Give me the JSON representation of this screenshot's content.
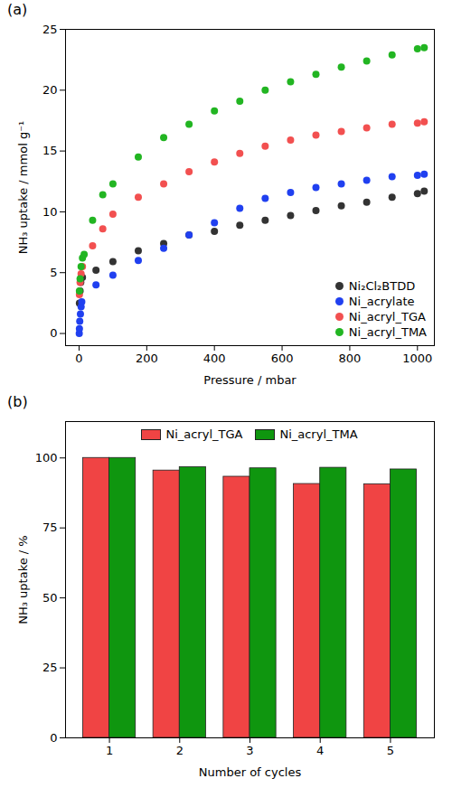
{
  "chart_data": [
    {
      "type": "scatter",
      "title": "(a)",
      "x_label": "Pressure / mbar",
      "y_label": "NH₃ uptake / mmol g⁻¹",
      "xlim": [
        -40,
        1050
      ],
      "xticks": [
        0,
        200,
        400,
        600,
        800,
        1000
      ],
      "ylim": [
        -1,
        25
      ],
      "yticks": [
        0,
        5,
        10,
        15,
        20,
        25
      ],
      "legend": "bottom right",
      "series": [
        {
          "name": "Ni₂Cl₂BTDD",
          "color": "#333333",
          "marker": "circle",
          "x": [
            1,
            3,
            5,
            10,
            50,
            100,
            175,
            250,
            325,
            400,
            475,
            550,
            625,
            700,
            775,
            850,
            925,
            1000,
            1020
          ],
          "values": [
            2.5,
            3.5,
            4.2,
            4.6,
            5.2,
            5.9,
            6.8,
            7.4,
            8.1,
            8.4,
            8.9,
            9.3,
            9.7,
            10.1,
            10.5,
            10.8,
            11.2,
            11.5,
            11.7
          ]
        },
        {
          "name": "Ni_acrylate",
          "color": "#2040f0",
          "marker": "circle",
          "x": [
            0.5,
            1,
            2,
            4,
            6,
            8,
            50,
            100,
            175,
            250,
            325,
            400,
            475,
            550,
            625,
            700,
            775,
            850,
            925,
            1000,
            1020
          ],
          "values": [
            0,
            0.4,
            1.0,
            1.6,
            2.2,
            2.6,
            4.0,
            4.8,
            6.0,
            7.0,
            8.1,
            9.1,
            10.3,
            11.1,
            11.6,
            12.0,
            12.3,
            12.6,
            12.9,
            13.0,
            13.1
          ]
        },
        {
          "name": "Ni_acryl_TGA",
          "color": "#f25050",
          "marker": "circle",
          "x": [
            1,
            3,
            6,
            10,
            40,
            70,
            100,
            175,
            250,
            325,
            400,
            475,
            550,
            625,
            700,
            775,
            850,
            925,
            1000,
            1020
          ],
          "values": [
            3.2,
            4.2,
            4.9,
            5.5,
            7.2,
            8.6,
            9.8,
            11.2,
            12.3,
            13.3,
            14.1,
            14.8,
            15.4,
            15.9,
            16.3,
            16.6,
            16.9,
            17.2,
            17.3,
            17.4
          ]
        },
        {
          "name": "Ni_acryl_TMA",
          "color": "#22b522",
          "marker": "circle",
          "x": [
            1,
            3,
            6,
            10,
            15,
            40,
            70,
            100,
            175,
            250,
            325,
            400,
            475,
            550,
            625,
            700,
            775,
            850,
            925,
            1000,
            1020
          ],
          "values": [
            3.5,
            4.5,
            5.5,
            6.2,
            6.5,
            9.3,
            11.4,
            12.3,
            14.5,
            16.1,
            17.2,
            18.3,
            19.1,
            20.0,
            20.7,
            21.3,
            21.9,
            22.4,
            22.9,
            23.4,
            23.5
          ]
        }
      ]
    },
    {
      "type": "bar",
      "title": "(b)",
      "x_label": "Number of cycles",
      "y_label": "NH₃ uptake / %",
      "categories": [
        "1",
        "2",
        "3",
        "4",
        "5"
      ],
      "ylim": [
        0,
        113
      ],
      "yticks": [
        0,
        25,
        50,
        75,
        100
      ],
      "legend": "top",
      "series": [
        {
          "name": "Ni_acryl_TGA",
          "color": "#f04444",
          "values": [
            100,
            95.5,
            93.3,
            90.7,
            90.6
          ]
        },
        {
          "name": "Ni_acryl_TMA",
          "color": "#0f960f",
          "values": [
            100,
            96.7,
            96.3,
            96.5,
            95.9
          ]
        }
      ]
    }
  ]
}
